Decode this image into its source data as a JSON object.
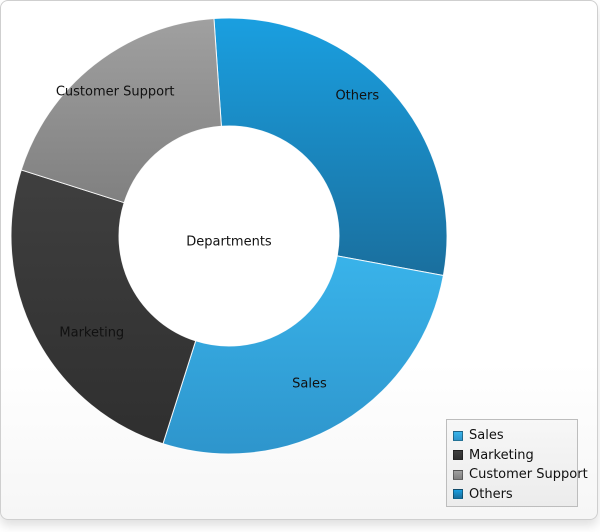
{
  "chart_data": {
    "type": "pie",
    "title": "Departments",
    "categories": [
      "Others",
      "Sales",
      "Marketing",
      "Customer Support"
    ],
    "values": [
      29,
      27,
      25,
      19
    ],
    "colors": {
      "Others": "#1b7fb6",
      "Sales": "#34a7e0",
      "Marketing": "#3a3a3a",
      "Customer Support": "#8f8f8f"
    },
    "legend": {
      "position": "bottom-right",
      "entries": [
        "Sales",
        "Marketing",
        "Customer Support",
        "Others"
      ]
    },
    "slice_labels": [
      "Others",
      "Sales",
      "Marketing",
      "Customer Support"
    ]
  }
}
